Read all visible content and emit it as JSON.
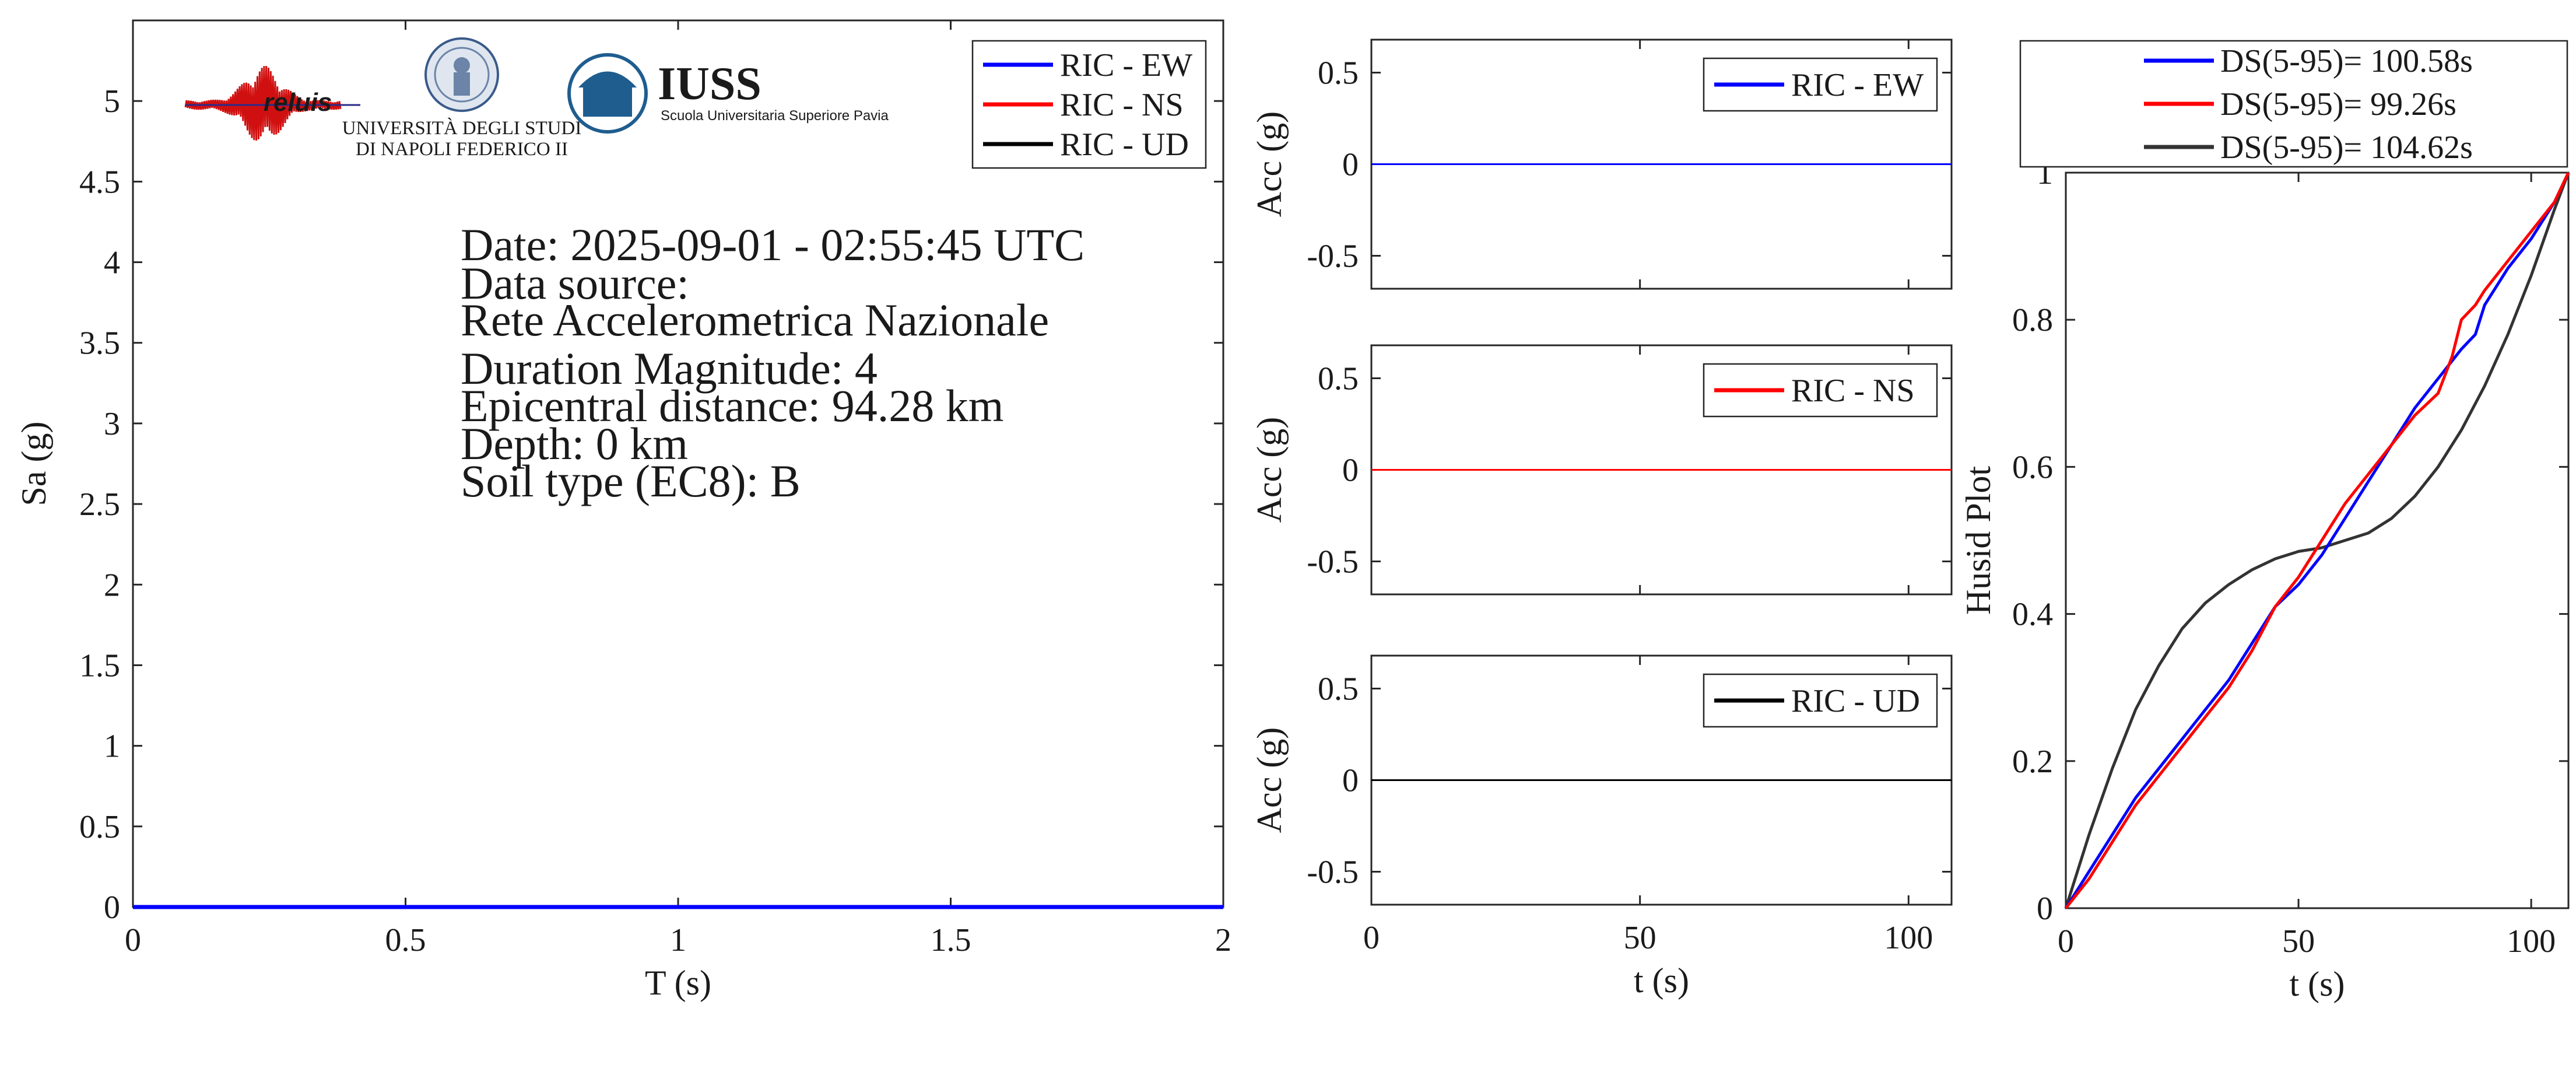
{
  "chart_data": [
    {
      "type": "line",
      "xlabel": "T (s)",
      "ylabel": "Sa (g)",
      "xlim": [
        0,
        2
      ],
      "ylim": [
        0,
        5.5
      ],
      "xticks": [
        "0",
        "0.5",
        "1",
        "1.5",
        "2"
      ],
      "yticks": [
        "0",
        "0.5",
        "1",
        "1.5",
        "2",
        "2.5",
        "3",
        "3.5",
        "4",
        "4.5",
        "5"
      ],
      "legend_position": "top-right",
      "series": [
        {
          "name": "RIC - EW",
          "color": "#0000ff",
          "x": [
            0,
            0.5,
            1,
            1.5,
            2
          ],
          "values": [
            0,
            0,
            0,
            0,
            0
          ]
        },
        {
          "name": "RIC - NS",
          "color": "#ff0000",
          "x": [
            0,
            0.5,
            1,
            1.5,
            2
          ],
          "values": [
            0,
            0,
            0,
            0,
            0
          ]
        },
        {
          "name": "RIC - UD",
          "color": "#000000",
          "x": [
            0,
            0.5,
            1,
            1.5,
            2
          ],
          "values": [
            0,
            0,
            0,
            0,
            0
          ]
        }
      ],
      "annotations": [
        "Date: 2025-09-01 - 02:55:45 UTC",
        "Data source:",
        "Rete Accelerometrica Nazionale",
        "Duration Magnitude: 4",
        "Epicentral distance: 94.28 km",
        "Depth: 0 km",
        "Soil type (EC8): B"
      ],
      "logos": {
        "reluis": "reluis",
        "unina_line1": "UNIVERSITÀ DEGLI STUDI",
        "unina_line2": "DI NAPOLI FEDERICO II",
        "iuss": "IUSS",
        "iuss_sub": "Scuola Universitaria Superiore Pavia"
      }
    },
    {
      "type": "line",
      "xlabel": "",
      "ylabel": "Acc (g)",
      "xlim": [
        0,
        108
      ],
      "ylim": [
        -0.68,
        0.68
      ],
      "yticks": [
        "-0.5",
        "0",
        "0.5"
      ],
      "legend_position": "top-right",
      "series": [
        {
          "name": "RIC - EW",
          "color": "#0000ff",
          "x": [
            0,
            108
          ],
          "values": [
            0,
            0
          ]
        }
      ]
    },
    {
      "type": "line",
      "xlabel": "",
      "ylabel": "Acc (g)",
      "xlim": [
        0,
        108
      ],
      "ylim": [
        -0.68,
        0.68
      ],
      "yticks": [
        "-0.5",
        "0",
        "0.5"
      ],
      "legend_position": "top-right",
      "series": [
        {
          "name": "RIC - NS",
          "color": "#ff0000",
          "x": [
            0,
            108
          ],
          "values": [
            0,
            0
          ]
        }
      ]
    },
    {
      "type": "line",
      "xlabel": "t (s)",
      "ylabel": "Acc (g)",
      "xlim": [
        0,
        108
      ],
      "ylim": [
        -0.68,
        0.68
      ],
      "xticks": [
        "0",
        "50",
        "100"
      ],
      "yticks": [
        "-0.5",
        "0",
        "0.5"
      ],
      "legend_position": "top-right",
      "series": [
        {
          "name": "RIC - UD",
          "color": "#000000",
          "x": [
            0,
            108
          ],
          "values": [
            0,
            0
          ]
        }
      ]
    },
    {
      "type": "line",
      "xlabel": "t (s)",
      "ylabel": "Husid Plot",
      "xlim": [
        0,
        108
      ],
      "ylim": [
        0,
        1
      ],
      "xticks": [
        "0",
        "50",
        "100"
      ],
      "yticks": [
        "0",
        "0.2",
        "0.4",
        "0.6",
        "0.8",
        "1"
      ],
      "legend_position": "top-outside",
      "series": [
        {
          "name": "DS(5-95)= 100.58s",
          "color": "#0000ff",
          "x": [
            0,
            5,
            10,
            15,
            20,
            25,
            30,
            35,
            40,
            45,
            50,
            55,
            60,
            65,
            70,
            75,
            80,
            85,
            88,
            90,
            95,
            100,
            105,
            108
          ],
          "values": [
            0,
            0.05,
            0.1,
            0.15,
            0.19,
            0.23,
            0.27,
            0.31,
            0.36,
            0.41,
            0.44,
            0.48,
            0.53,
            0.58,
            0.63,
            0.68,
            0.72,
            0.76,
            0.78,
            0.82,
            0.87,
            0.91,
            0.96,
            1.0
          ]
        },
        {
          "name": "DS(5-95)= 99.26s",
          "color": "#ff0000",
          "x": [
            0,
            5,
            10,
            15,
            20,
            25,
            30,
            35,
            40,
            45,
            50,
            55,
            60,
            65,
            70,
            75,
            80,
            83,
            85,
            88,
            90,
            95,
            100,
            105,
            108
          ],
          "values": [
            0,
            0.04,
            0.09,
            0.14,
            0.18,
            0.22,
            0.26,
            0.3,
            0.35,
            0.41,
            0.45,
            0.5,
            0.55,
            0.59,
            0.63,
            0.67,
            0.7,
            0.75,
            0.8,
            0.82,
            0.84,
            0.88,
            0.92,
            0.96,
            1.0
          ]
        },
        {
          "name": "DS(5-95)= 104.62s",
          "color": "#333333",
          "x": [
            0,
            5,
            10,
            15,
            20,
            25,
            30,
            35,
            40,
            45,
            50,
            55,
            60,
            65,
            70,
            75,
            80,
            85,
            90,
            95,
            100,
            105,
            108
          ],
          "values": [
            0,
            0.1,
            0.19,
            0.27,
            0.33,
            0.38,
            0.415,
            0.44,
            0.46,
            0.475,
            0.485,
            0.49,
            0.5,
            0.51,
            0.53,
            0.56,
            0.6,
            0.65,
            0.71,
            0.78,
            0.86,
            0.95,
            1.0
          ]
        }
      ]
    }
  ]
}
